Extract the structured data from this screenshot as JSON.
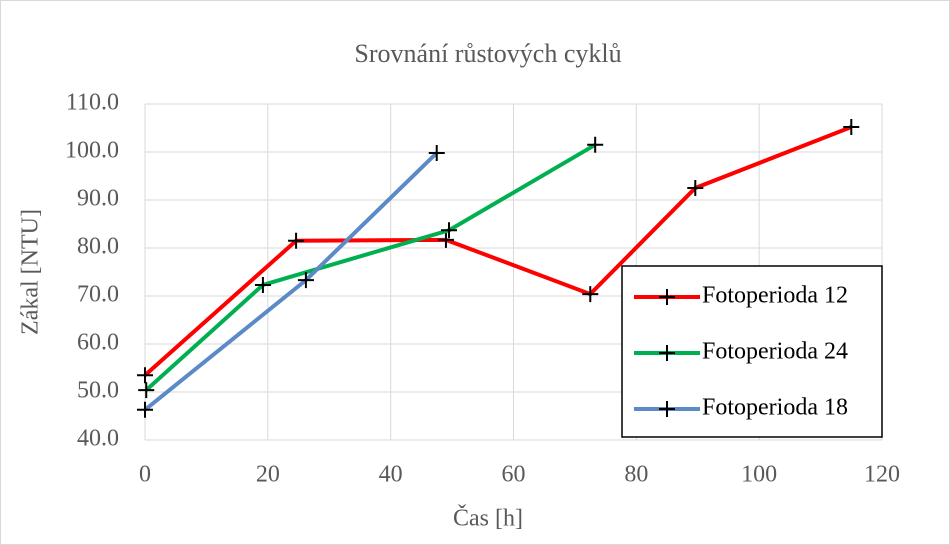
{
  "chart_data": {
    "type": "line",
    "title": "Srovnání růstových cyklů",
    "x_label": "Čas [h]",
    "y_label": "Zákal [NTU]",
    "series": [
      {
        "name": "Fotoperioda 12",
        "color": "#ff0000",
        "x": [
          0,
          24.6,
          49,
          72.5,
          89.6,
          115
        ],
        "values": [
          53.5,
          81.5,
          81.7,
          70.4,
          92.5,
          105.2
        ]
      },
      {
        "name": "Fotoperioda 24",
        "color": "#00b050",
        "x": [
          0.2,
          19.2,
          49.5,
          73.3
        ],
        "values": [
          50.4,
          72.3,
          83.7,
          101.5
        ]
      },
      {
        "name": "Fotoperioda 18",
        "color": "#5b8ac6",
        "x": [
          0,
          26.2,
          47.5
        ],
        "values": [
          46.3,
          73.3,
          99.8
        ]
      }
    ],
    "xlim": [
      0,
      120
    ],
    "xticks": [
      0,
      20,
      40,
      60,
      80,
      100,
      120
    ],
    "ylim": [
      40,
      110
    ],
    "yticks": [
      {
        "value": 40,
        "label": "40.0"
      },
      {
        "value": 50,
        "label": "50.0"
      },
      {
        "value": 60,
        "label": "60.0"
      },
      {
        "value": 70,
        "label": "70.0"
      },
      {
        "value": 80,
        "label": "80.0"
      },
      {
        "value": 90,
        "label": "90.0"
      },
      {
        "value": 100,
        "label": "100.0"
      },
      {
        "value": 110,
        "label": "110.0"
      }
    ],
    "grid": true,
    "legend": "lower right"
  }
}
